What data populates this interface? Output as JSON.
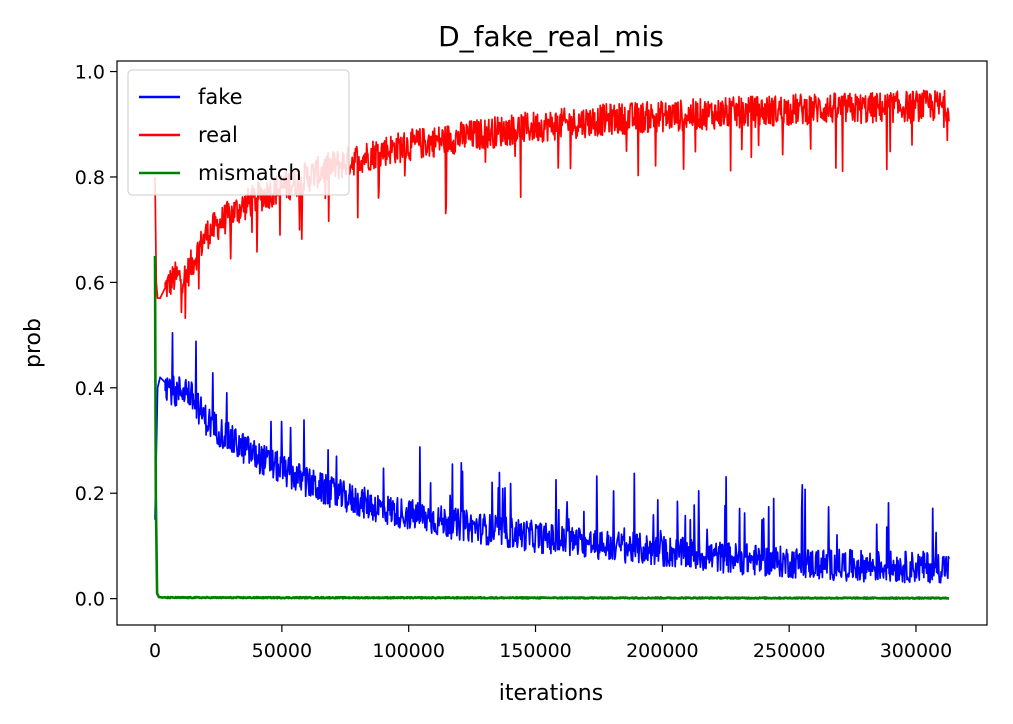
{
  "chart_data": {
    "type": "line",
    "title": "D_fake_real_mis",
    "xlabel": "iterations",
    "ylabel": "prob",
    "xlim": [
      -15000,
      328000
    ],
    "ylim": [
      -0.05,
      1.02
    ],
    "xticks": [
      0,
      50000,
      100000,
      150000,
      200000,
      250000,
      300000
    ],
    "yticks": [
      0.0,
      0.2,
      0.4,
      0.6,
      0.8,
      1.0
    ],
    "ytick_labels": [
      "0.0",
      "0.2",
      "0.4",
      "0.6",
      "0.8",
      "1.0"
    ],
    "grid": false,
    "legend": {
      "placement": "top-left",
      "entries": [
        "fake",
        "real",
        "mismatch"
      ]
    },
    "series": [
      {
        "name": "fake",
        "color": "#0000ff",
        "x": [
          0,
          1000,
          2000,
          4000,
          8000,
          12000,
          16000,
          20000,
          30000,
          40000,
          50000,
          60000,
          70000,
          80000,
          90000,
          100000,
          120000,
          140000,
          160000,
          180000,
          200000,
          220000,
          240000,
          260000,
          280000,
          300000,
          313000
        ],
        "values": [
          0.15,
          0.4,
          0.42,
          0.41,
          0.39,
          0.4,
          0.37,
          0.34,
          0.3,
          0.27,
          0.245,
          0.22,
          0.2,
          0.185,
          0.17,
          0.16,
          0.14,
          0.125,
          0.11,
          0.1,
          0.09,
          0.08,
          0.072,
          0.066,
          0.062,
          0.06,
          0.06
        ],
        "noise": 0.03
      },
      {
        "name": "real",
        "color": "#ff0000",
        "x": [
          0,
          500,
          1000,
          2000,
          4000,
          8000,
          12000,
          16000,
          20000,
          30000,
          40000,
          50000,
          60000,
          70000,
          80000,
          90000,
          100000,
          120000,
          140000,
          160000,
          180000,
          200000,
          220000,
          240000,
          260000,
          280000,
          300000,
          313000
        ],
        "values": [
          0.8,
          0.6,
          0.57,
          0.57,
          0.59,
          0.61,
          0.61,
          0.65,
          0.69,
          0.73,
          0.76,
          0.78,
          0.8,
          0.82,
          0.835,
          0.85,
          0.86,
          0.875,
          0.89,
          0.9,
          0.91,
          0.915,
          0.92,
          0.925,
          0.93,
          0.93,
          0.935,
          0.935
        ],
        "noise": 0.03
      },
      {
        "name": "mismatch",
        "color": "#008000",
        "x": [
          0,
          300,
          800,
          1500,
          3000,
          313000
        ],
        "values": [
          0.65,
          0.2,
          0.01,
          0.003,
          0.002,
          0.001
        ],
        "noise": 0.001
      }
    ]
  }
}
